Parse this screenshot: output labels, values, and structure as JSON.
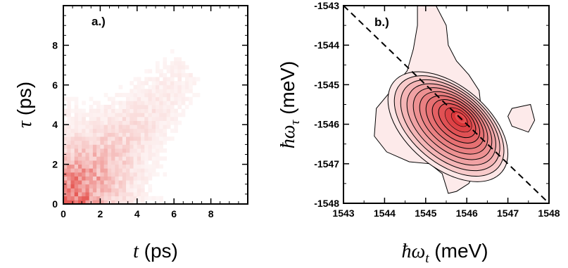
{
  "chart_data": [
    {
      "type": "heatmap",
      "panel_label": "a.)",
      "xlabel_symbol": "t",
      "xlabel_unit": "(ps)",
      "ylabel_symbol": "τ",
      "ylabel_unit": "(ps)",
      "xlim": [
        0,
        10
      ],
      "ylim": [
        0,
        10
      ],
      "xticks": [
        "0",
        "2",
        "4",
        "6",
        "8"
      ],
      "yticks": [
        "0",
        "2",
        "4",
        "6",
        "8"
      ],
      "colormap": [
        "#ffffff",
        "#e0322c"
      ],
      "peak": [
        0.6,
        0.6
      ],
      "description_values": {
        "spread_along_diagonal": true
      }
    },
    {
      "type": "contour",
      "panel_label": "b.)",
      "xlabel_symbol": "ħω",
      "xlabel_sub": "t",
      "xlabel_unit": "(meV)",
      "ylabel_symbol": "ħω",
      "ylabel_sub": "τ",
      "ylabel_unit": "(meV)",
      "xlim": [
        1543,
        1548
      ],
      "ylim": [
        -1548,
        -1543
      ],
      "xticks": [
        "1543",
        "1544",
        "1545",
        "1546",
        "1547",
        "1548"
      ],
      "yticks": [
        "-1543",
        "-1544",
        "-1545",
        "-1546",
        "-1547",
        "-1548"
      ],
      "peak": [
        1545.85,
        -1545.85
      ],
      "diagonal": [
        [
          1543,
          -1543
        ],
        [
          1548,
          -1548
        ]
      ],
      "colormap": [
        "#fdeeee",
        "#d8262a"
      ],
      "contour_levels": 12
    }
  ]
}
